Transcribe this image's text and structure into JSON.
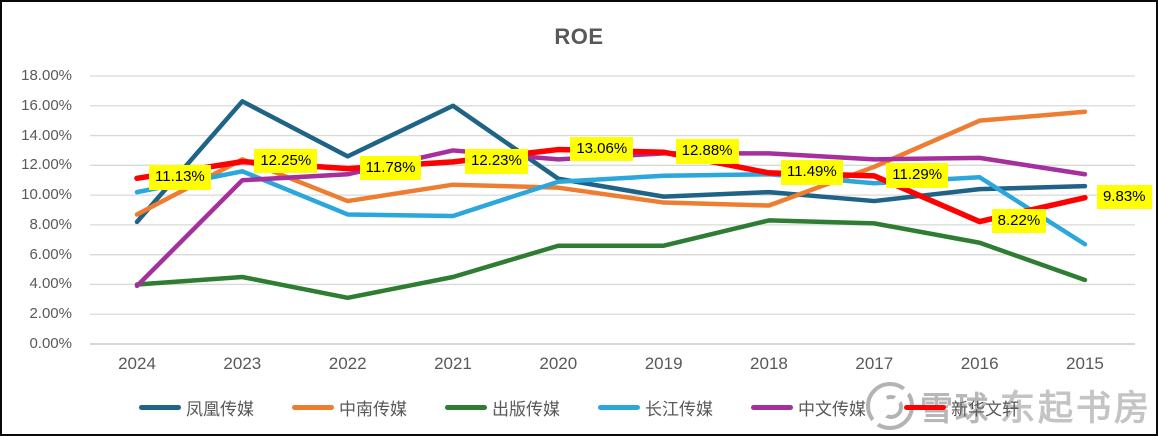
{
  "chart": {
    "title": "ROE"
  },
  "chart_data": {
    "type": "line",
    "title": "ROE",
    "categories": [
      "2024",
      "2023",
      "2022",
      "2021",
      "2020",
      "2019",
      "2018",
      "2017",
      "2016",
      "2015"
    ],
    "series": [
      {
        "name": "凤凰传媒",
        "color": "#1F6386",
        "values": [
          8.2,
          16.3,
          12.6,
          16.0,
          11.1,
          9.9,
          10.2,
          9.6,
          10.4,
          10.6
        ]
      },
      {
        "name": "中南传媒",
        "color": "#ED7D31",
        "values": [
          8.7,
          12.4,
          9.6,
          10.7,
          10.5,
          9.5,
          9.3,
          11.9,
          15.0,
          15.6
        ]
      },
      {
        "name": "出版传媒",
        "color": "#2E7D32",
        "values": [
          4.0,
          4.5,
          3.1,
          4.5,
          6.6,
          6.6,
          8.3,
          8.1,
          6.8,
          4.3
        ]
      },
      {
        "name": "长江传媒",
        "color": "#2BA7DB",
        "values": [
          10.2,
          11.6,
          8.7,
          8.6,
          10.9,
          11.3,
          11.4,
          10.8,
          11.2,
          6.7
        ]
      },
      {
        "name": "中文传媒",
        "color": "#A5309D",
        "values": [
          3.9,
          11.0,
          11.4,
          13.0,
          12.4,
          12.8,
          12.8,
          12.4,
          12.5,
          11.4
        ]
      },
      {
        "name": "新华文轩",
        "color": "#FF0000",
        "values": [
          11.13,
          12.25,
          11.78,
          12.23,
          13.06,
          12.88,
          11.49,
          11.29,
          8.22,
          9.83
        ]
      }
    ],
    "labeled_series": "新华文轩",
    "point_labels": [
      "11.13%",
      "12.25%",
      "11.78%",
      "12.23%",
      "13.06%",
      "12.88%",
      "11.49%",
      "11.29%",
      "8.22%",
      "9.83%"
    ],
    "point_label_bg": "#FFFF00",
    "xlabel": "",
    "ylabel": "",
    "ylim": [
      0,
      18
    ],
    "y_ticks": [
      "18.00%",
      "16.00%",
      "14.00%",
      "12.00%",
      "10.00%",
      "8.00%",
      "6.00%",
      "4.00%",
      "2.00%",
      "0.00%"
    ],
    "grid": true,
    "gridline_color": "#D9D9D9",
    "legend_position": "bottom"
  },
  "watermark": {
    "logo": "xueqiu-snowball-logo",
    "text_1": "雪球",
    "text_2": "东起书房"
  }
}
